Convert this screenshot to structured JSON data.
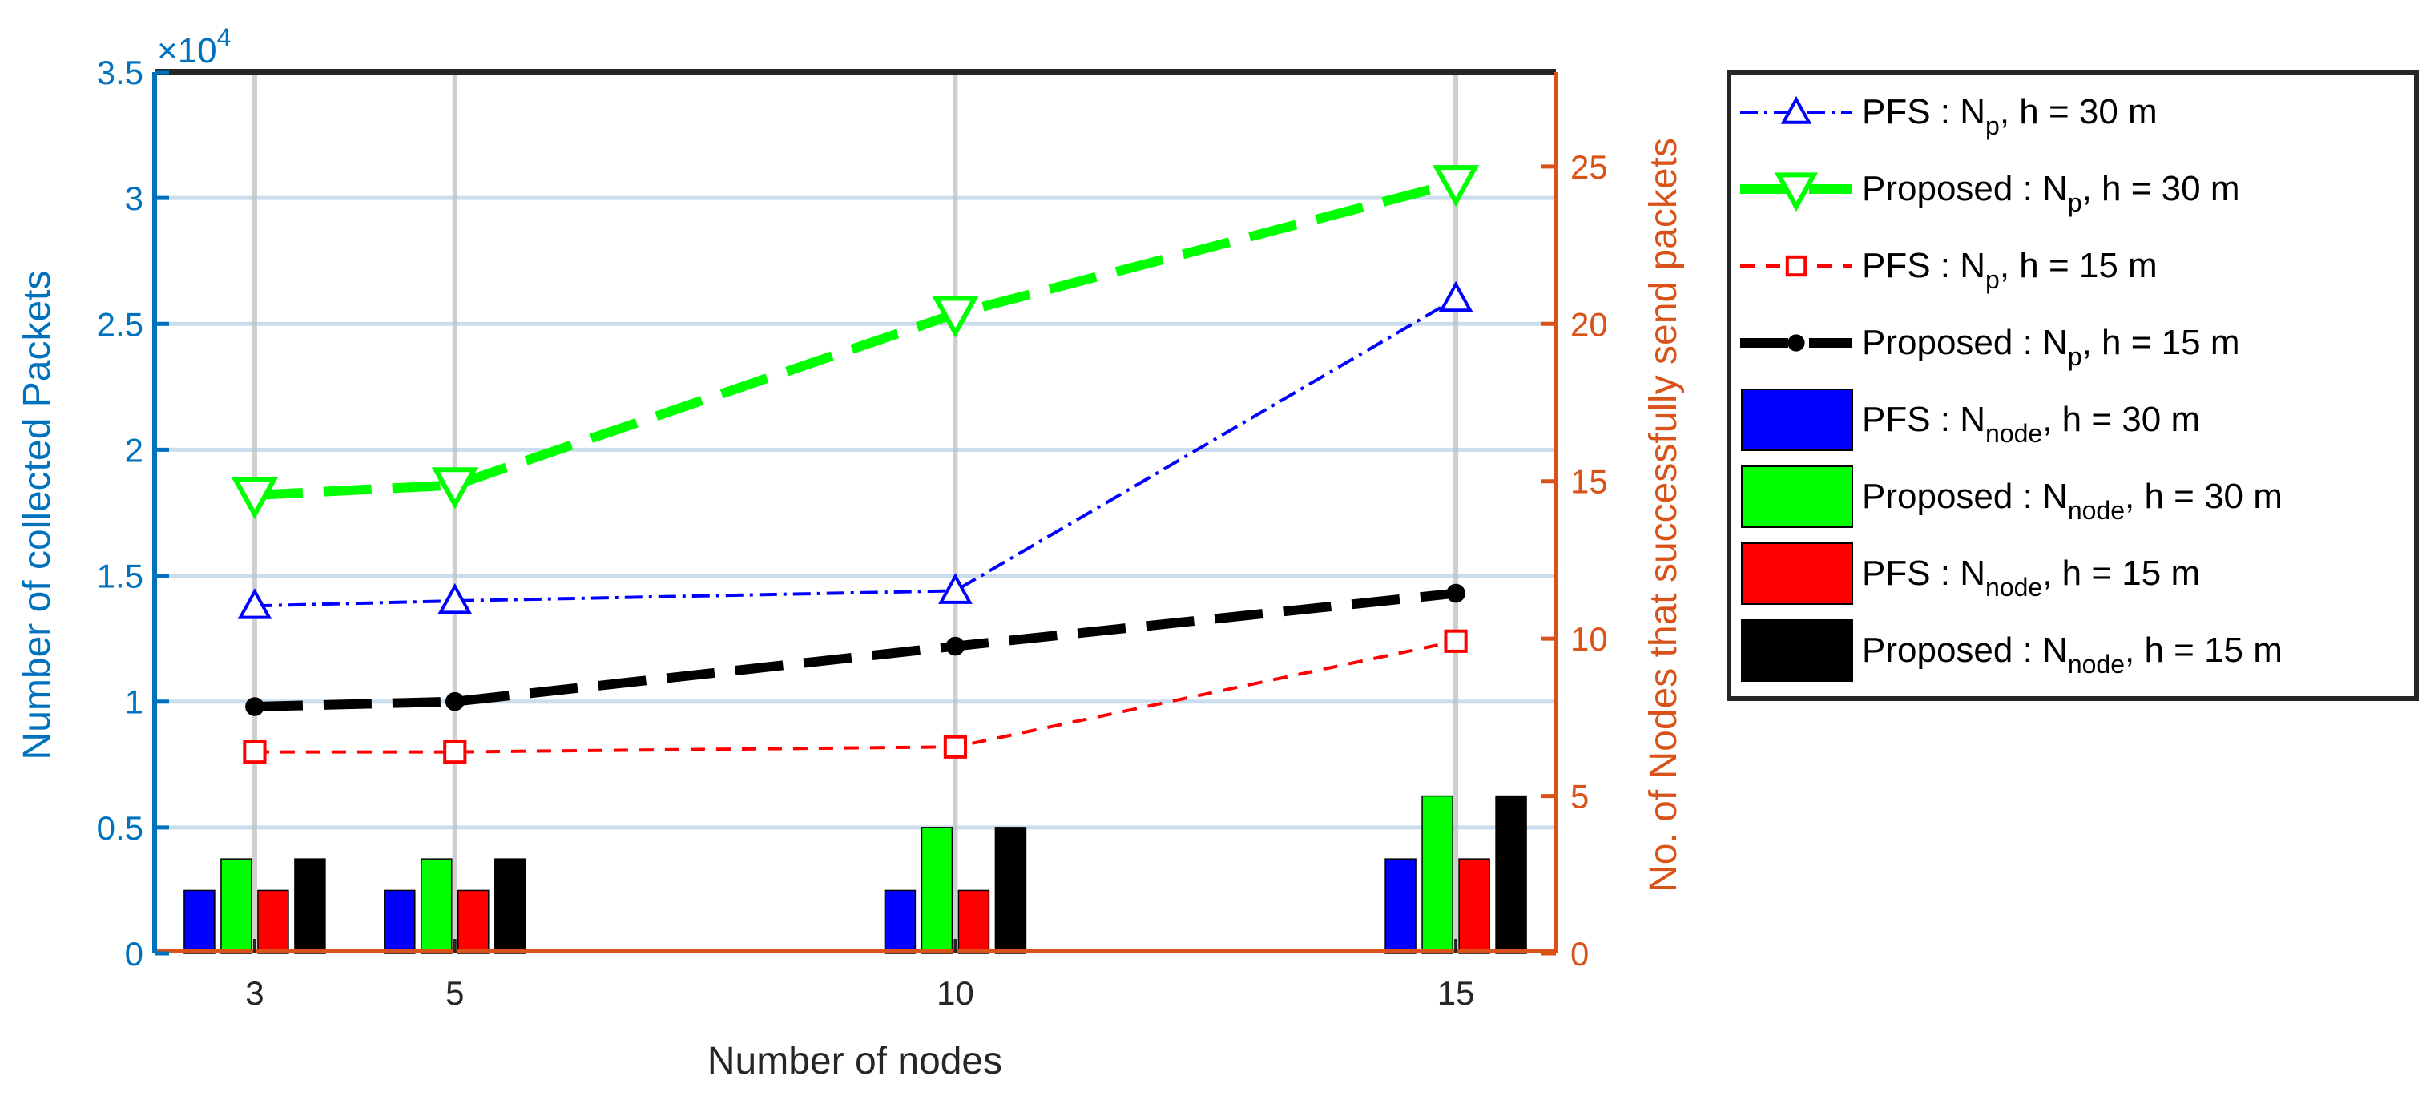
{
  "chart_data": {
    "type": "bar",
    "xlabel": "Number of nodes",
    "ylabel_left": "Number of collected Packets",
    "ylabel_right": "No. of Nodes that successfully send packets",
    "y_multiplier_label": "×10",
    "y_multiplier_exponent": "4",
    "x_ticks": [
      "3",
      "5",
      "10",
      "15"
    ],
    "x_values": [
      3,
      5,
      10,
      15
    ],
    "xlim": [
      2,
      16
    ],
    "ylim_left": [
      0,
      3.5
    ],
    "ylim_right": [
      0,
      28
    ],
    "y_ticks_left": [
      "0",
      "0.5",
      "1",
      "1.5",
      "2",
      "2.5",
      "3",
      "3.5"
    ],
    "y_ticks_right": [
      "0",
      "5",
      "10",
      "15",
      "20",
      "25"
    ],
    "grid": true,
    "legend_position": "outside-right",
    "line_series": [
      {
        "label_main": "PFS : N",
        "label_sub": "p",
        "label_tail": ", h = 30 m",
        "color": "#0000FF",
        "marker": "triangle-up",
        "values": [
          1.38,
          1.4,
          1.44,
          2.6
        ]
      },
      {
        "label_main": "Proposed : N",
        "label_sub": "p",
        "label_tail": ", h = 30 m",
        "color": "#00FF00",
        "marker": "triangle-down",
        "values": [
          1.82,
          1.86,
          2.54,
          3.06
        ]
      },
      {
        "label_main": "PFS : N",
        "label_sub": "p",
        "label_tail": ", h = 15 m",
        "color": "#FF0000",
        "marker": "square",
        "values": [
          0.8,
          0.8,
          0.82,
          1.24
        ]
      },
      {
        "label_main": "Proposed : N",
        "label_sub": "p",
        "label_tail": ", h = 15 m",
        "color": "#000000",
        "marker": "circle",
        "values": [
          0.98,
          1.0,
          1.22,
          1.43
        ]
      }
    ],
    "bar_series": [
      {
        "label_main": "PFS : N",
        "label_sub": "node",
        "label_tail": ", h = 30 m",
        "color": "#0000FF",
        "values": [
          2,
          2,
          2,
          3
        ]
      },
      {
        "label_main": "Proposed : N",
        "label_sub": "node",
        "label_tail": ", h = 30 m",
        "color": "#00FF00",
        "values": [
          3,
          3,
          4,
          5
        ]
      },
      {
        "label_main": "PFS : N",
        "label_sub": "node",
        "label_tail": ", h = 15 m",
        "color": "#FF0000",
        "values": [
          2,
          2,
          2,
          3
        ]
      },
      {
        "label_main": "Proposed : N",
        "label_sub": "node",
        "label_tail": ", h = 15 m",
        "color": "#000000",
        "values": [
          3,
          3,
          4,
          5
        ]
      }
    ],
    "colors": {
      "left_axis": "#0072BD",
      "right_axis": "#D95319",
      "grid": "#C9DDEE",
      "grid_x": "#BFBFBF"
    }
  }
}
